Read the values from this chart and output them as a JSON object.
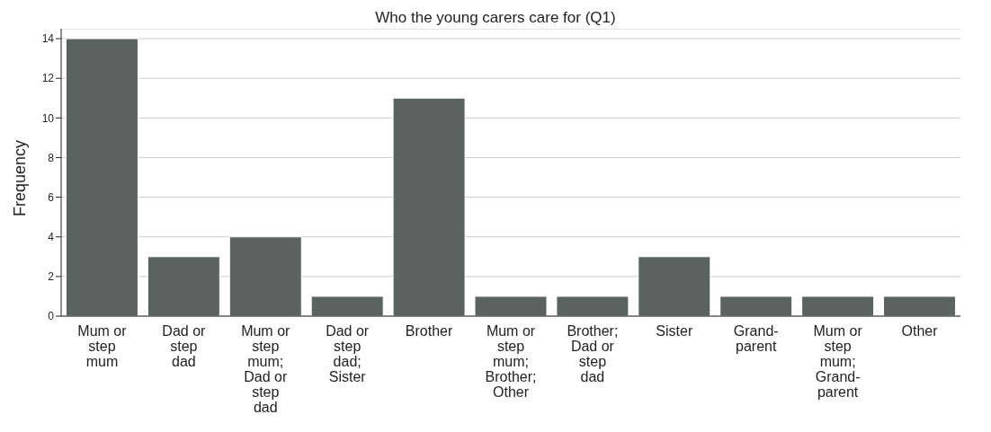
{
  "chart_data": {
    "type": "bar",
    "title": "Who the young carers care for (Q1)",
    "ylabel": "Frequency",
    "categories": [
      "Mum or step mum",
      "Dad or step dad",
      "Mum or step mum; Dad or step dad",
      "Dad or step dad; Sister",
      "Brother",
      "Mum or step mum; Brother; Other",
      "Brother; Dad or step dad",
      "Sister",
      "Grand-parent",
      "Mum or step mum; Grand-parent",
      "Other"
    ],
    "values": [
      14,
      3,
      4,
      1,
      11,
      1,
      1,
      3,
      1,
      1,
      1
    ],
    "color": "#5b6360",
    "ylim": [
      0,
      14.5
    ],
    "yticks": [
      0,
      2,
      4,
      6,
      8,
      10,
      12,
      14
    ],
    "grid": "y"
  }
}
